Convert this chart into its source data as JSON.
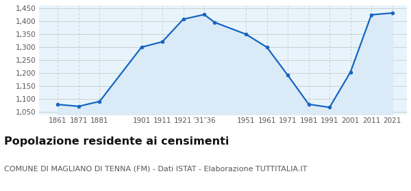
{
  "years": [
    1861,
    1871,
    1881,
    1901,
    1911,
    1921,
    1931,
    1936,
    1951,
    1961,
    1971,
    1981,
    1991,
    2001,
    2011,
    2021
  ],
  "population": [
    1079,
    1072,
    1091,
    1300,
    1321,
    1408,
    1426,
    1396,
    1350,
    1300,
    1192,
    1080,
    1068,
    1204,
    1425,
    1432
  ],
  "xtick_positions": [
    1861,
    1871,
    1881,
    1901,
    1911,
    1921,
    1931,
    1951,
    1961,
    1971,
    1981,
    1991,
    2001,
    2011,
    2021
  ],
  "xtick_labels": [
    "1861",
    "1871",
    "1881",
    "1901",
    "1911",
    "1921",
    "’31‶36",
    "1951",
    "1961",
    "1971",
    "1981",
    "1991",
    "2001",
    "2011",
    "2021"
  ],
  "line_color": "#1565c0",
  "fill_color": "#daeaf7",
  "marker_color": "#1565c0",
  "bg_plot_color": "#e8f4fb",
  "bg_fig_color": "#ffffff",
  "grid_color_h": "#c8c8c8",
  "grid_color_v": "#c8c8c8",
  "ylim": [
    1040,
    1460
  ],
  "yticks": [
    1050,
    1100,
    1150,
    1200,
    1250,
    1300,
    1350,
    1400,
    1450
  ],
  "ytick_labels": [
    "1,050",
    "1,100",
    "1,150",
    "1,200",
    "1,250",
    "1,300",
    "1,350",
    "1,400",
    "1,450"
  ],
  "xlim_left": 1852,
  "xlim_right": 2028,
  "title": "Popolazione residente ai censimenti",
  "subtitle": "COMUNE DI MAGLIANO DI TENNA (FM) - Dati ISTAT - Elaborazione TUTTITALIA.IT",
  "title_fontsize": 11.5,
  "subtitle_fontsize": 8,
  "tick_fontsize": 7.5
}
